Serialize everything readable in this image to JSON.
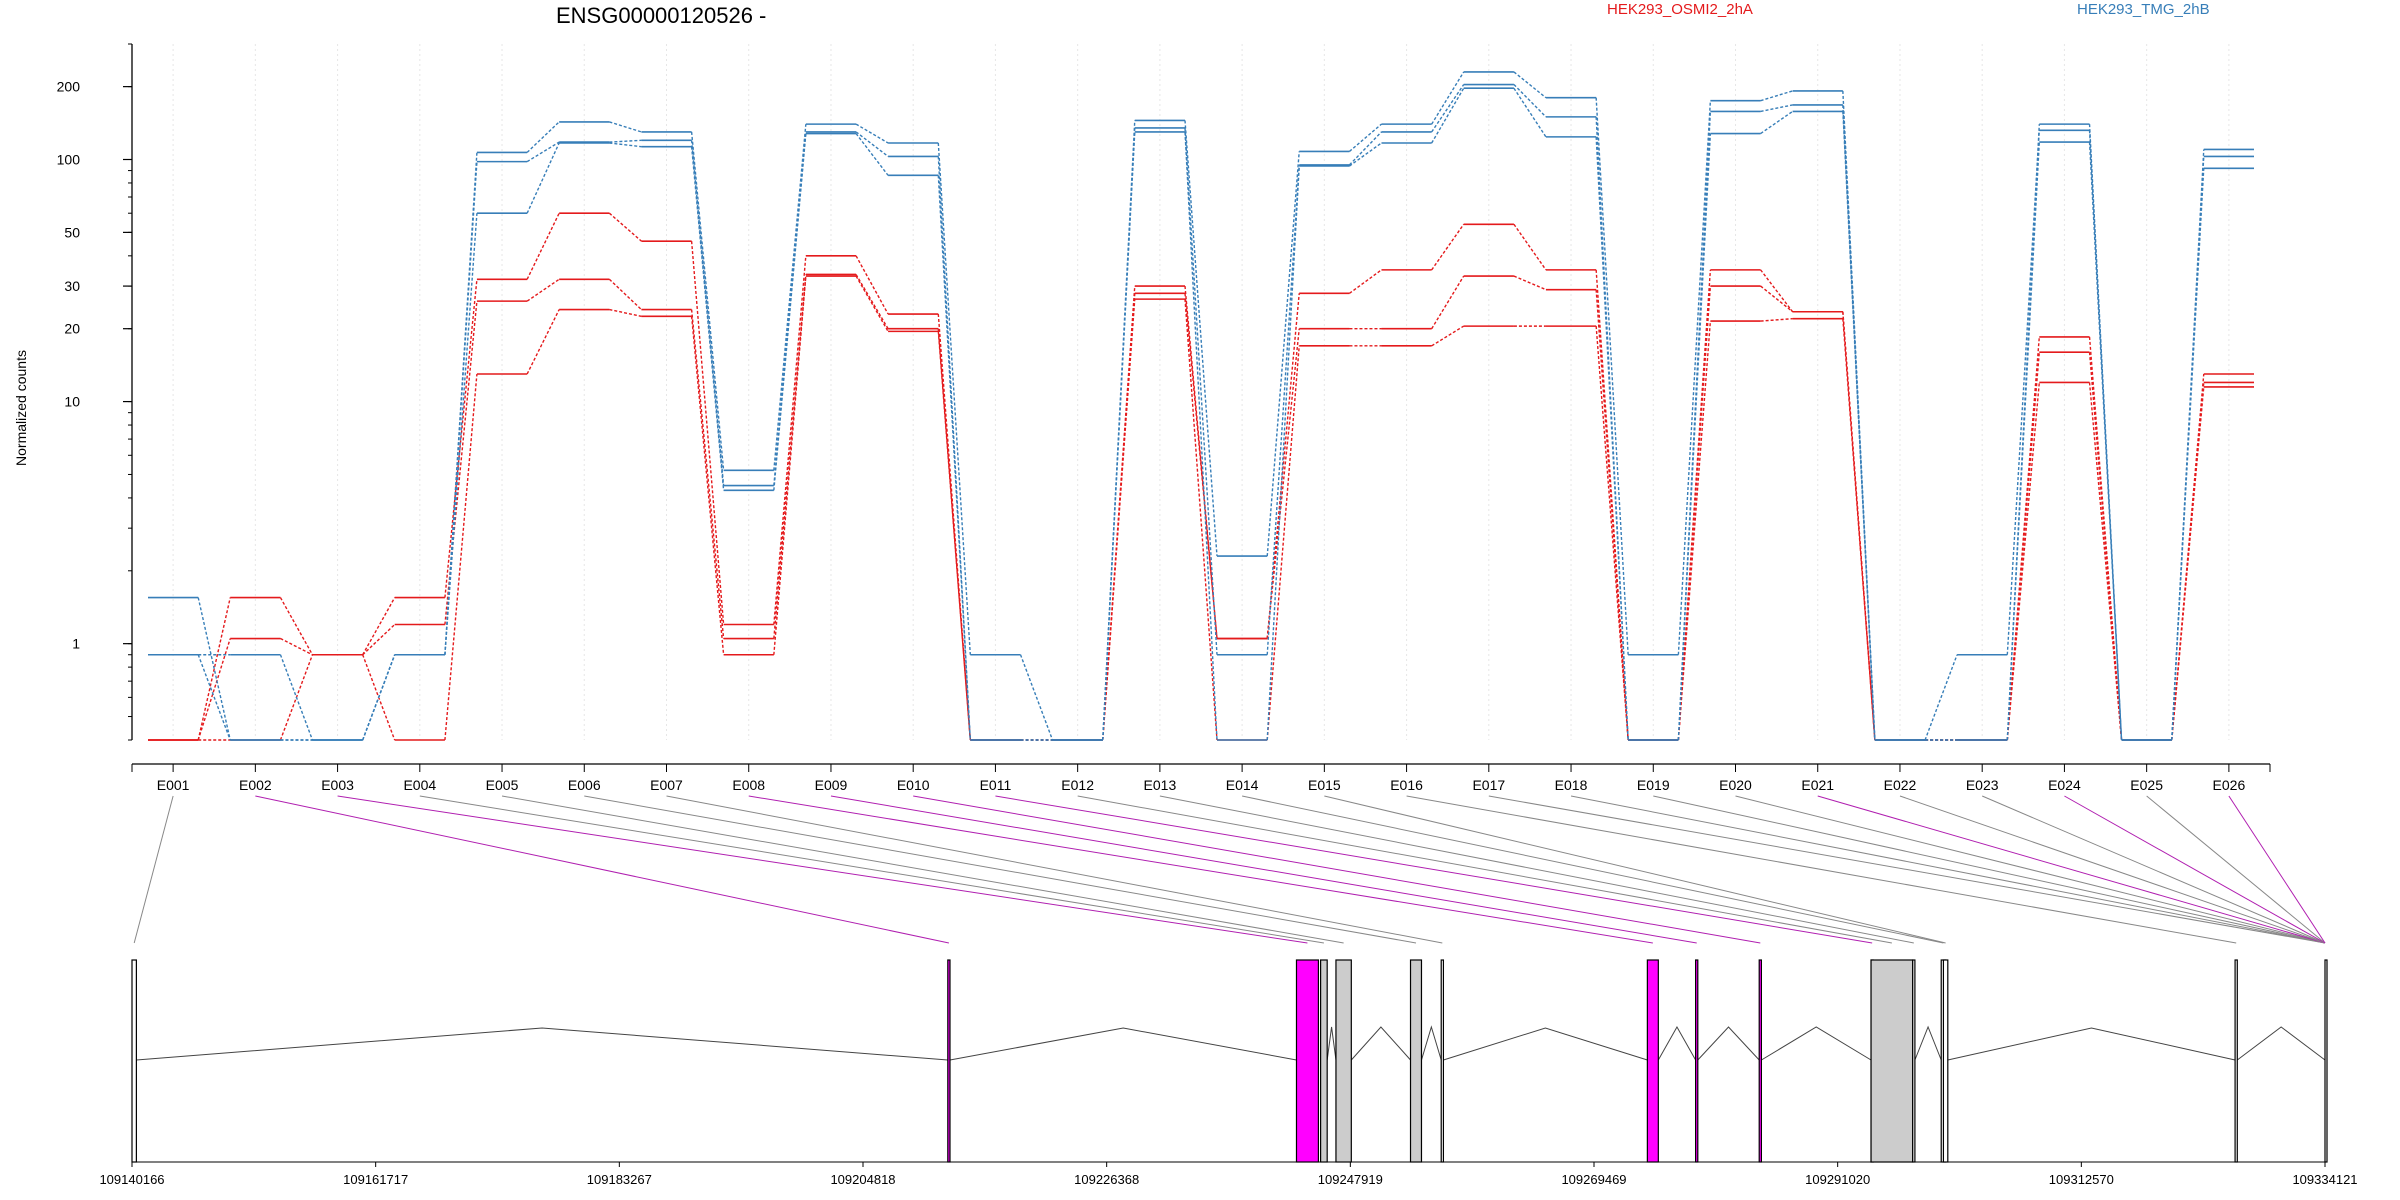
{
  "chart_data": {
    "type": "line",
    "title": "ENSG00000120526 -",
    "ylabel": "Normalized counts",
    "xlabel": "",
    "yscale": "log",
    "ylim": [
      0.4,
      300
    ],
    "y_ticks": [
      1,
      10,
      20,
      30,
      50,
      100,
      200
    ],
    "grid": "vertical-dotted",
    "legend_placement": "top",
    "exons": [
      "E001",
      "E002",
      "E003",
      "E004",
      "E005",
      "E006",
      "E007",
      "E008",
      "E009",
      "E010",
      "E011",
      "E012",
      "E013",
      "E014",
      "E015",
      "E016",
      "E017",
      "E018",
      "E019",
      "E020",
      "E021",
      "E022",
      "E023",
      "E024",
      "E025",
      "E026"
    ],
    "groups": [
      {
        "name": "HEK293_OSMI2_2hA",
        "color": "#e41a1c"
      },
      {
        "name": "HEK293_TMG_2hB",
        "color": "#377eb8"
      }
    ],
    "series": [
      {
        "group": 0,
        "values": [
          0.4,
          1.55,
          0.9,
          1.55,
          32,
          60,
          46,
          1.2,
          40,
          23,
          0.4,
          0.4,
          30,
          1.05,
          28,
          35,
          54,
          35,
          0.4,
          35,
          23.5,
          0.4,
          0.4,
          18.5,
          0.4,
          13
        ]
      },
      {
        "group": 0,
        "values": [
          0.4,
          1.05,
          0.9,
          1.2,
          26,
          32,
          24,
          1.05,
          33.5,
          20,
          0.4,
          0.4,
          28,
          1.05,
          20,
          20,
          33,
          29,
          0.4,
          30,
          23.5,
          0.4,
          0.4,
          16,
          0.4,
          12
        ]
      },
      {
        "group": 0,
        "values": [
          0.4,
          0.4,
          0.9,
          0.4,
          13,
          24,
          22.5,
          0.9,
          33,
          19.5,
          0.4,
          0.4,
          26.5,
          0.4,
          17,
          17,
          20.5,
          20.5,
          0.4,
          21.5,
          22,
          0.4,
          0.4,
          12,
          0.4,
          11.5
        ]
      },
      {
        "group": 1,
        "values": [
          1.55,
          0.4,
          0.4,
          0.9,
          107,
          143,
          130,
          5.2,
          140,
          117,
          0.9,
          0.4,
          145,
          2.3,
          108,
          140,
          230,
          180,
          0.9,
          175,
          192,
          0.4,
          0.4,
          140,
          0.4,
          110
        ]
      },
      {
        "group": 1,
        "values": [
          0.9,
          0.9,
          0.4,
          0.9,
          98,
          118,
          120,
          4.5,
          130,
          103,
          0.4,
          0.4,
          135,
          0.9,
          95,
          130,
          204,
          150,
          0.4,
          158,
          168,
          0.4,
          0.9,
          132,
          0.4,
          103
        ]
      },
      {
        "group": 1,
        "values": [
          0.9,
          0.4,
          0.4,
          0.9,
          60,
          117,
          113,
          4.3,
          128,
          86,
          0.4,
          0.4,
          130,
          0.4,
          94,
          117,
          197,
          124,
          0.4,
          128,
          158,
          0.4,
          0.4,
          118,
          0.4,
          92
        ]
      }
    ],
    "coordinate_ticks": [
      "109140166",
      "109161717",
      "109183267",
      "109204818",
      "109226368",
      "109247919",
      "109269469",
      "109291020",
      "109312570",
      "109334121"
    ]
  },
  "exon_model": {
    "exon_spans": [
      [
        0,
        0.002
      ],
      [
        0.372,
        0.373
      ],
      [
        0.531,
        0.541
      ],
      [
        0.542,
        0.545
      ],
      [
        0.549,
        0.556
      ],
      [
        0.583,
        0.588
      ],
      [
        0.597,
        0.598
      ],
      [
        0.691,
        0.696
      ],
      [
        0.713,
        0.714
      ],
      [
        0.742,
        0.743
      ],
      [
        0.793,
        0.794
      ],
      [
        0.793,
        0.812
      ],
      [
        0.812,
        0.813
      ],
      [
        0.825,
        0.827
      ],
      [
        0.826,
        0.828
      ],
      [
        0.959,
        0.96
      ],
      [
        1.0,
        1.0
      ]
    ],
    "highlight_exons": [
      1,
      2,
      7,
      8,
      9,
      10,
      20,
      23,
      25
    ],
    "colors": {
      "highlight": "#b01fb0",
      "highlight_fill": "#ff00ff",
      "exon_fill": "#cccccc",
      "connector": "#888888"
    }
  }
}
